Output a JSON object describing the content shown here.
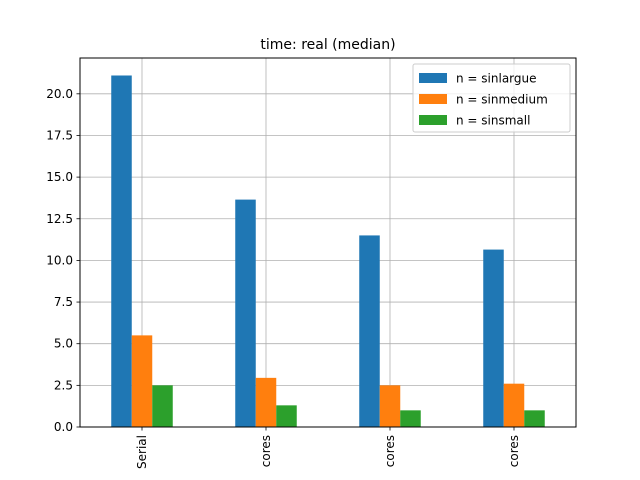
{
  "chart_data": {
    "type": "bar",
    "title": "time: real (median)",
    "xlabel": "",
    "ylabel": "",
    "categories": [
      "Serial",
      "cores",
      "cores",
      "cores"
    ],
    "series": [
      {
        "name": "n = sinlargue",
        "color": "#1f77b4",
        "values": [
          21.1,
          13.65,
          11.5,
          10.65
        ]
      },
      {
        "name": "n = sinmedium",
        "color": "#ff7f0e",
        "values": [
          5.5,
          2.95,
          2.5,
          2.6
        ]
      },
      {
        "name": "n = sinsmall",
        "color": "#2ca02c",
        "values": [
          2.5,
          1.3,
          1.0,
          1.0
        ]
      }
    ],
    "ylim": [
      0,
      22.15
    ],
    "yticks": [
      0.0,
      2.5,
      5.0,
      7.5,
      10.0,
      12.5,
      15.0,
      17.5,
      20.0
    ],
    "ytick_labels": [
      "0.0",
      "2.5",
      "5.0",
      "7.5",
      "10.0",
      "12.5",
      "15.0",
      "17.5",
      "20.0"
    ],
    "grid": true,
    "legend_position": "top-right"
  }
}
